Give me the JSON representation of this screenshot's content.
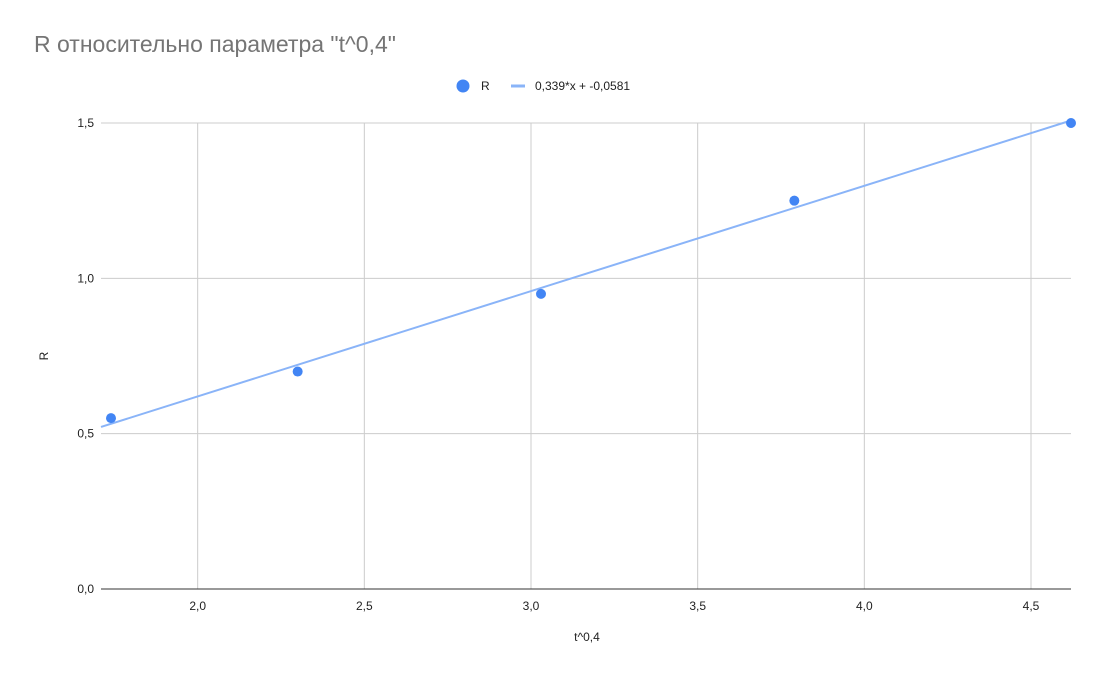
{
  "chart_data": {
    "type": "scatter",
    "title": "R относительно параметра \"t^0,4\"",
    "xlabel": "t^0,4",
    "ylabel": "R",
    "xlim": [
      1.71,
      4.62
    ],
    "ylim": [
      0,
      1.5
    ],
    "x_ticks": [
      2.0,
      2.5,
      3.0,
      3.5,
      4.0,
      4.5
    ],
    "x_tick_labels": [
      "2,0",
      "2,5",
      "3,0",
      "3,5",
      "4,0",
      "4,5"
    ],
    "y_ticks": [
      0,
      0.5,
      1.0,
      1.5
    ],
    "y_tick_labels": [
      "0,0",
      "0,5",
      "1,0",
      "1,5"
    ],
    "grid": true,
    "legend_position": "top",
    "series": [
      {
        "name": "R",
        "kind": "points",
        "color": "#4285f4",
        "points": [
          {
            "x": 1.74,
            "y": 0.55
          },
          {
            "x": 2.3,
            "y": 0.7
          },
          {
            "x": 3.03,
            "y": 0.95
          },
          {
            "x": 3.79,
            "y": 1.25
          },
          {
            "x": 4.62,
            "y": 1.5
          }
        ]
      },
      {
        "name": "0,339*x + -0,0581",
        "kind": "trendline",
        "color": "#8ab4f8",
        "slope": 0.339,
        "intercept": -0.0581
      }
    ]
  }
}
